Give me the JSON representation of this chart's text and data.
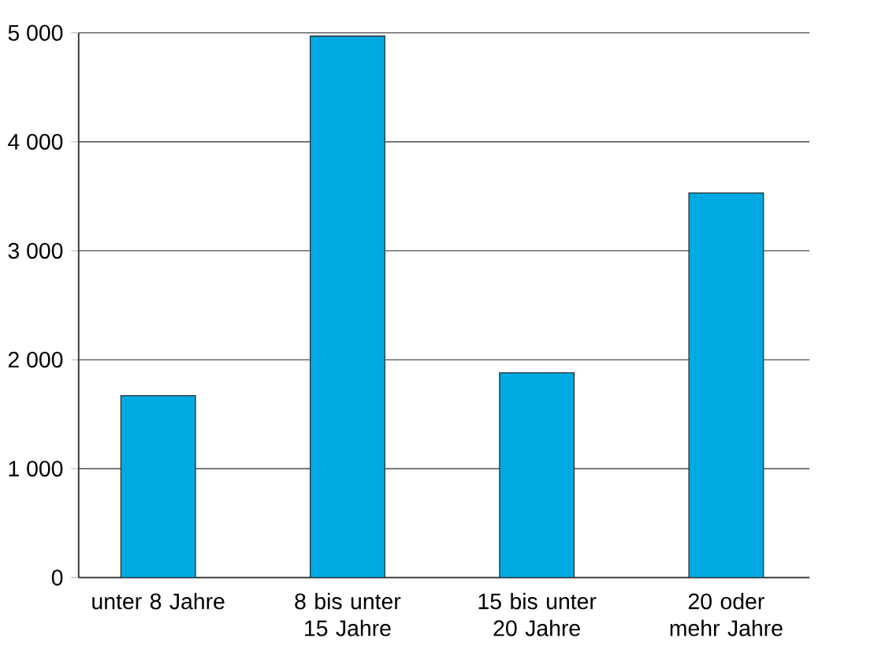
{
  "chart_data": {
    "type": "bar",
    "categories": [
      "unter 8 Jahre",
      "8 bis unter 15 Jahre",
      "15 bis unter 20 Jahre",
      "20 oder mehr Jahre"
    ],
    "values": [
      1670,
      4970,
      1880,
      3530
    ],
    "color": "#00a9e2",
    "ylim": [
      0,
      5000
    ],
    "yticks": [
      0,
      {
        "value": 1000,
        "label": "1 000"
      },
      {
        "value": 2000,
        "label": "2 000"
      },
      {
        "value": 3000,
        "label": "3 000"
      },
      {
        "value": 4000,
        "label": "4 000"
      },
      {
        "value": 5000,
        "label": "5 000"
      }
    ],
    "grid": "y"
  }
}
